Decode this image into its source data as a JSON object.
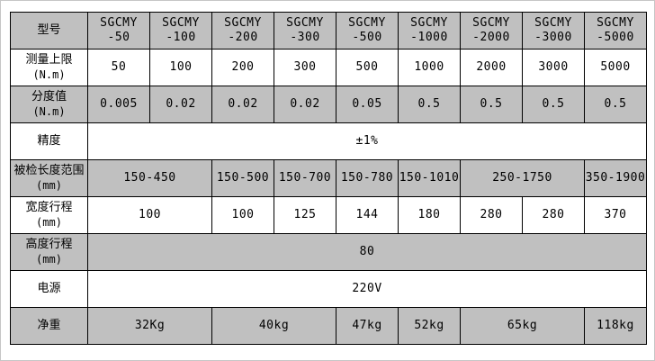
{
  "colors": {
    "shaded_row": "#c0c0c0",
    "row_plain": "#ffffff",
    "grid_border": "#000000",
    "page_border": "#c6c6c6",
    "text": "#000000"
  },
  "table": {
    "description_rows": 9,
    "rows": [
      {
        "label": [
          "型号"
        ],
        "shaded": true,
        "cells": [
          {
            "lines": [
              "SGCMY",
              "-50"
            ],
            "span": 1
          },
          {
            "lines": [
              "SGCMY",
              "-100"
            ],
            "span": 1
          },
          {
            "lines": [
              "SGCMY",
              "-200"
            ],
            "span": 1
          },
          {
            "lines": [
              "SGCMY",
              "-300"
            ],
            "span": 1
          },
          {
            "lines": [
              "SGCMY",
              "-500"
            ],
            "span": 1
          },
          {
            "lines": [
              "SGCMY",
              "-1000"
            ],
            "span": 1
          },
          {
            "lines": [
              "SGCMY",
              "-2000"
            ],
            "span": 1
          },
          {
            "lines": [
              "SGCMY",
              "-3000"
            ],
            "span": 1
          },
          {
            "lines": [
              "SGCMY",
              "-5000"
            ],
            "span": 1
          }
        ]
      },
      {
        "label": [
          "测量上限",
          "(N.m)"
        ],
        "shaded": false,
        "cells": [
          {
            "lines": [
              "50"
            ],
            "span": 1
          },
          {
            "lines": [
              "100"
            ],
            "span": 1
          },
          {
            "lines": [
              "200"
            ],
            "span": 1
          },
          {
            "lines": [
              "300"
            ],
            "span": 1
          },
          {
            "lines": [
              "500"
            ],
            "span": 1
          },
          {
            "lines": [
              "1000"
            ],
            "span": 1
          },
          {
            "lines": [
              "2000"
            ],
            "span": 1
          },
          {
            "lines": [
              "3000"
            ],
            "span": 1
          },
          {
            "lines": [
              "5000"
            ],
            "span": 1
          }
        ]
      },
      {
        "label": [
          "分度值",
          "(N.m)"
        ],
        "shaded": true,
        "cells": [
          {
            "lines": [
              "0.005"
            ],
            "span": 1
          },
          {
            "lines": [
              "0.02"
            ],
            "span": 1
          },
          {
            "lines": [
              "0.02"
            ],
            "span": 1
          },
          {
            "lines": [
              "0.02"
            ],
            "span": 1
          },
          {
            "lines": [
              "0.05"
            ],
            "span": 1
          },
          {
            "lines": [
              "0.5"
            ],
            "span": 1
          },
          {
            "lines": [
              "0.5"
            ],
            "span": 1
          },
          {
            "lines": [
              "0.5"
            ],
            "span": 1
          },
          {
            "lines": [
              "0.5"
            ],
            "span": 1
          }
        ]
      },
      {
        "label": [
          "精度"
        ],
        "shaded": false,
        "cells": [
          {
            "lines": [
              "±1%"
            ],
            "span": 9
          }
        ]
      },
      {
        "label": [
          "被检长度范围",
          "(mm)"
        ],
        "shaded": true,
        "cells": [
          {
            "lines": [
              "150-450"
            ],
            "span": 2
          },
          {
            "lines": [
              "150-500"
            ],
            "span": 1
          },
          {
            "lines": [
              "150-700"
            ],
            "span": 1
          },
          {
            "lines": [
              "150-780"
            ],
            "span": 1
          },
          {
            "lines": [
              "150-1010"
            ],
            "span": 1
          },
          {
            "lines": [
              "250-1750"
            ],
            "span": 2
          },
          {
            "lines": [
              "350-1900"
            ],
            "span": 1
          }
        ]
      },
      {
        "label": [
          "宽度行程",
          "(mm)"
        ],
        "shaded": false,
        "cells": [
          {
            "lines": [
              "100"
            ],
            "span": 2
          },
          {
            "lines": [
              "100"
            ],
            "span": 1
          },
          {
            "lines": [
              "125"
            ],
            "span": 1
          },
          {
            "lines": [
              "144"
            ],
            "span": 1
          },
          {
            "lines": [
              "180"
            ],
            "span": 1
          },
          {
            "lines": [
              "280"
            ],
            "span": 1
          },
          {
            "lines": [
              "280"
            ],
            "span": 1
          },
          {
            "lines": [
              "370"
            ],
            "span": 1
          }
        ]
      },
      {
        "label": [
          "高度行程",
          "(mm)"
        ],
        "shaded": true,
        "cells": [
          {
            "lines": [
              "80"
            ],
            "span": 9
          }
        ]
      },
      {
        "label": [
          "电源"
        ],
        "shaded": false,
        "cells": [
          {
            "lines": [
              "220V"
            ],
            "span": 9
          }
        ]
      },
      {
        "label": [
          "净重"
        ],
        "shaded": true,
        "cells": [
          {
            "lines": [
              "32Kg"
            ],
            "span": 2
          },
          {
            "lines": [
              "40kg"
            ],
            "span": 2
          },
          {
            "lines": [
              "47kg"
            ],
            "span": 1
          },
          {
            "lines": [
              "52kg"
            ],
            "span": 1
          },
          {
            "lines": [
              "65kg"
            ],
            "span": 2
          },
          {
            "lines": [
              "118kg"
            ],
            "span": 1
          }
        ]
      }
    ]
  }
}
